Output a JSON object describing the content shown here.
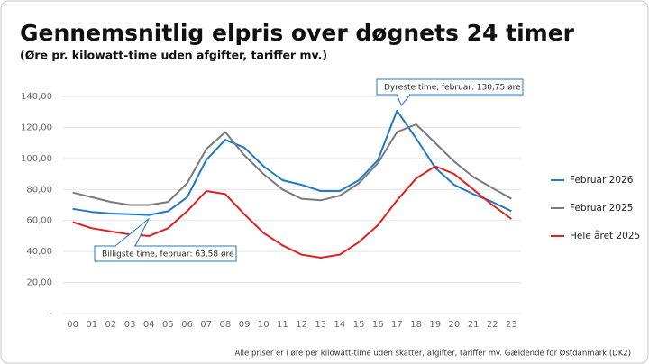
{
  "chart_data": {
    "type": "line",
    "title": "Gennemsnitlig elpris over døgnets 24 timer",
    "subtitle": "(Øre pr. kilowatt-time uden afgifter, tariffer mv.)",
    "footnote": "Alle priser er i øre per kilowatt-time uden skatter, afgifter, tariffer mv. Gældende for Østdanmark (DK2)",
    "categories": [
      "00",
      "01",
      "02",
      "03",
      "04",
      "05",
      "06",
      "07",
      "08",
      "09",
      "10",
      "11",
      "12",
      "13",
      "14",
      "15",
      "16",
      "17",
      "18",
      "19",
      "20",
      "21",
      "22",
      "23"
    ],
    "series": [
      {
        "name": "Februar 2026",
        "color": "#1f78c8",
        "values": [
          67.5,
          65.5,
          64.5,
          64,
          63.58,
          66,
          75,
          99,
          112,
          107,
          95,
          86,
          83,
          79,
          79,
          86,
          99,
          130.75,
          113,
          94,
          83,
          77,
          72,
          66
        ]
      },
      {
        "name": "Februar 2025",
        "color": "#7a7a7a",
        "values": [
          78,
          75,
          72,
          70,
          70,
          72,
          84,
          106,
          117,
          102,
          90,
          80,
          74,
          73,
          76,
          84,
          97,
          117,
          122,
          110,
          98,
          88,
          81,
          74
        ]
      },
      {
        "name": "Hele året 2025",
        "color": "#e02020",
        "values": [
          59,
          55,
          53,
          51,
          50,
          55,
          66,
          79,
          77,
          64,
          52,
          44,
          38,
          36,
          38,
          46,
          57,
          73,
          87,
          95,
          90,
          80,
          70,
          61
        ]
      }
    ],
    "ylim": [
      0,
      140
    ],
    "yticks": [
      {
        "value": 0,
        "label": "-"
      },
      {
        "value": 20,
        "label": "20,00"
      },
      {
        "value": 40,
        "label": "40,00"
      },
      {
        "value": 60,
        "label": "60,00"
      },
      {
        "value": 80,
        "label": "80,00"
      },
      {
        "value": 100,
        "label": "100,00"
      },
      {
        "value": 120,
        "label": "120,00"
      },
      {
        "value": 140,
        "label": "140,00"
      }
    ],
    "grid": true,
    "legend": "right",
    "annotations": [
      {
        "text": "Dyreste time, februar: 130,75 øre"
      },
      {
        "text": "Billigste time, februar: 63,58 øre"
      }
    ]
  }
}
